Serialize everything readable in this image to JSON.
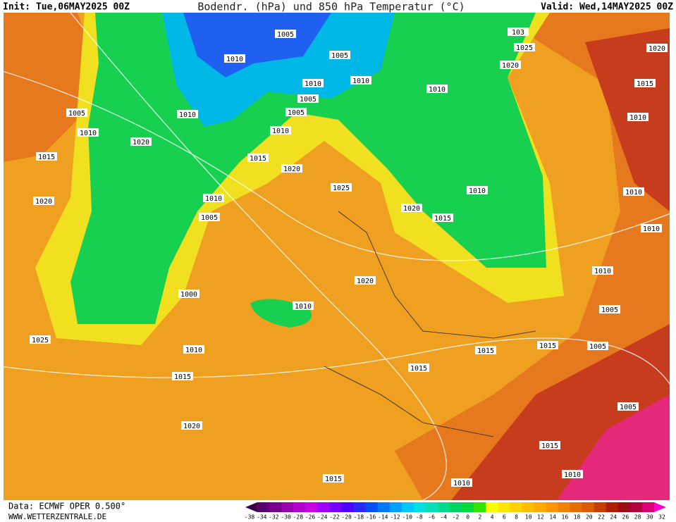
{
  "header": {
    "init": "Init: Tue,06MAY2025 00Z",
    "title": "Bodendr. (hPa) und 850 hPa Temperatur (°C)",
    "valid": "Valid: Wed,14MAY2025 00Z"
  },
  "isobar_labels": [
    "1005",
    "1010",
    "1005",
    "1010",
    "1010",
    "1005",
    "1005",
    "1010",
    "1010",
    "1015",
    "1020",
    "1025",
    "1020",
    "1010",
    "1005",
    "1005",
    "1010",
    "1015",
    "1020",
    "1000",
    "1010",
    "1020",
    "1025",
    "1010",
    "1015",
    "1020",
    "1015",
    "1010",
    "1015",
    "1015",
    "1015",
    "1005",
    "1005",
    "1010",
    "1010",
    "1010",
    "1015",
    "1020",
    "1010",
    "1010",
    "1020",
    "1025",
    "103",
    "1020",
    "1015",
    "1010",
    "1005",
    "1015",
    "1010"
  ],
  "colorbar": {
    "labels": [
      "-38",
      "-34",
      "-32",
      "-30",
      "-28",
      "-26",
      "-24",
      "-22",
      "-20",
      "-18",
      "-16",
      "-14",
      "-12",
      "-10",
      "-8",
      "-6",
      "-4",
      "-2",
      "0",
      "2",
      "4",
      "6",
      "8",
      "10",
      "12",
      "14",
      "16",
      "18",
      "20",
      "22",
      "24",
      "26",
      "28",
      "30",
      "32"
    ],
    "colors": [
      "#3c0046",
      "#5a0070",
      "#7a0090",
      "#9900b0",
      "#b400d0",
      "#cc00e6",
      "#a000ff",
      "#7800ff",
      "#5000ff",
      "#2828ff",
      "#0050ff",
      "#0078ff",
      "#00a0ff",
      "#00c8ff",
      "#00e0e0",
      "#00e0b4",
      "#00dc8c",
      "#00d264",
      "#00dc3c",
      "#32e600",
      "#ffff00",
      "#ffe600",
      "#ffd200",
      "#ffbe00",
      "#ffaa00",
      "#ff9600",
      "#f08200",
      "#e66e00",
      "#dc5a00",
      "#c83c00",
      "#b41e00",
      "#a00a14",
      "#b4003c",
      "#dc0078",
      "#ff00c8"
    ]
  },
  "footer": {
    "source": "Data: ECMWF OPER 0.500°",
    "site": "WWW.WETTERZENTRALE.DE"
  }
}
